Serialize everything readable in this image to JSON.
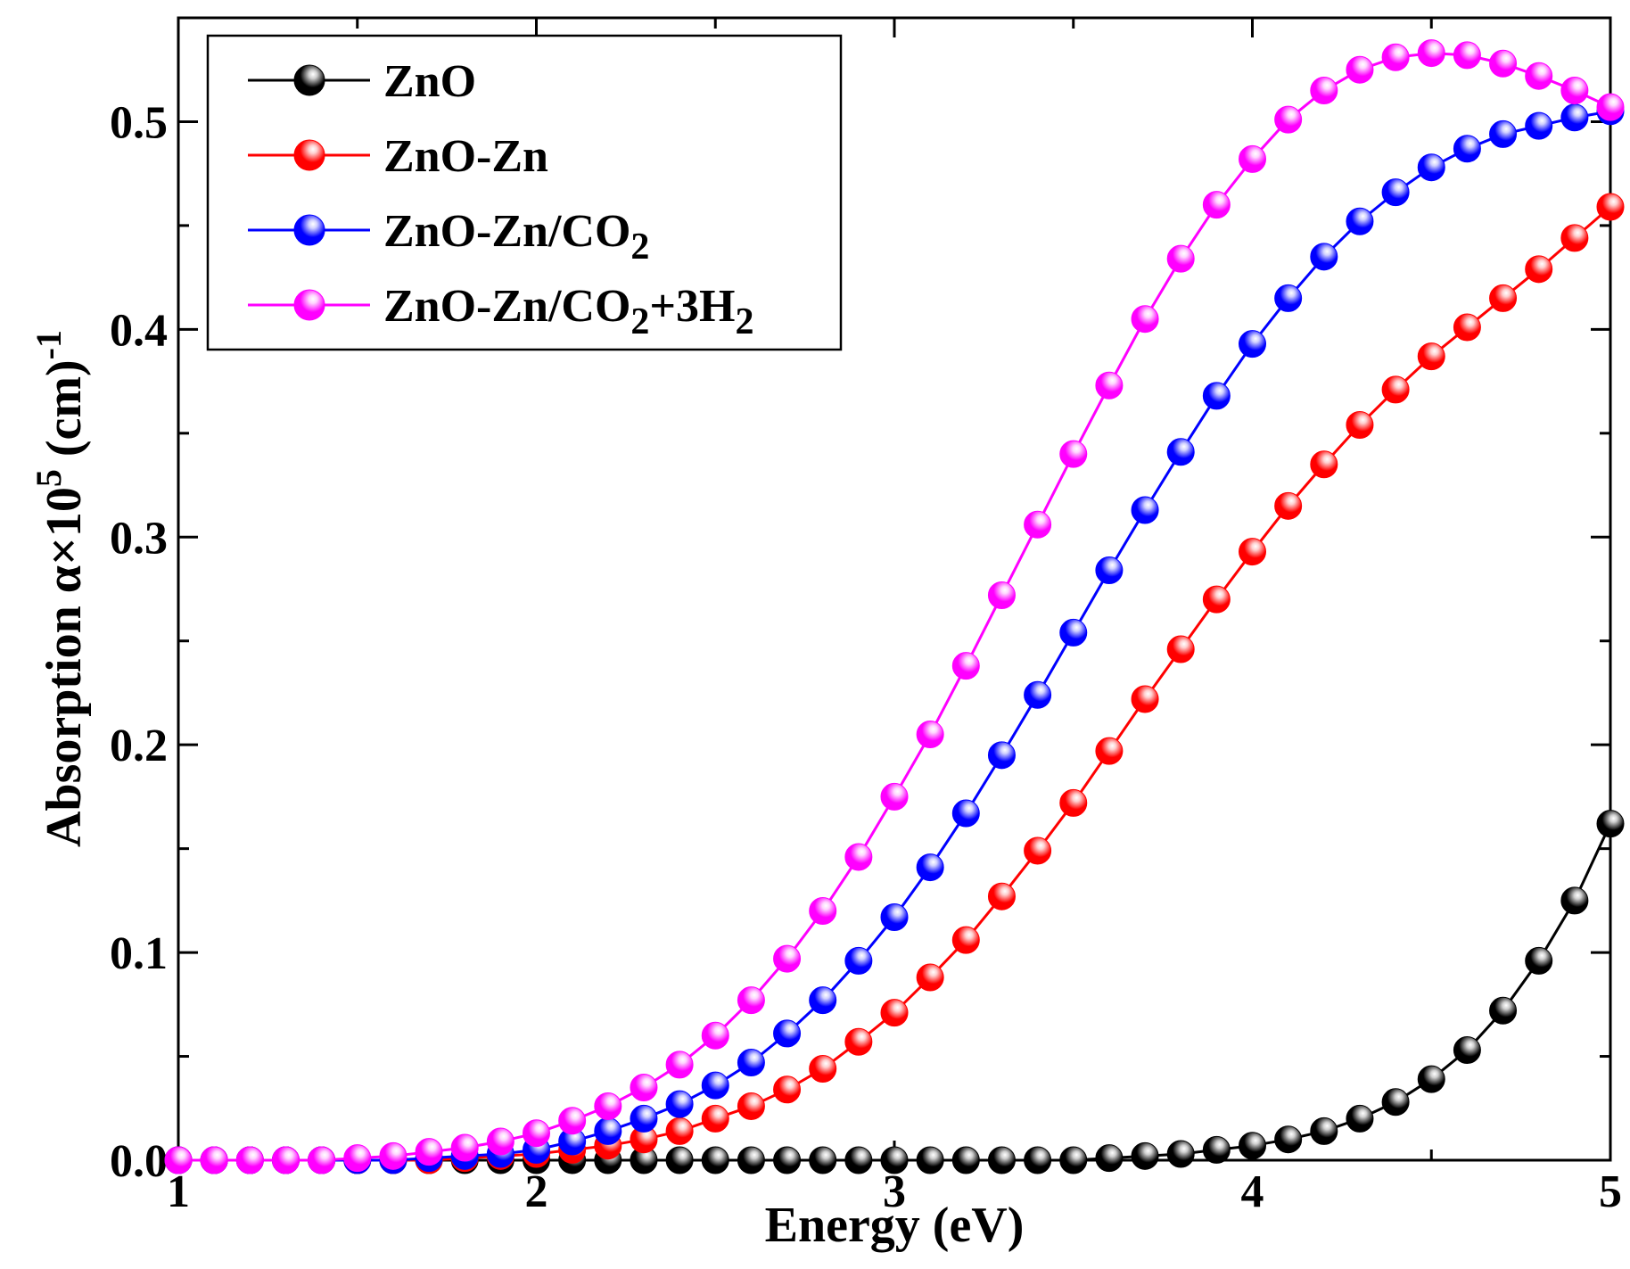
{
  "chart_data": {
    "type": "line",
    "title": "",
    "xlabel": "Energy (eV)",
    "ylabel": {
      "main": "Absorption α×10",
      "exp": "5",
      "unit": " (cm)",
      "unit_exp": "-1"
    },
    "xlim": [
      1,
      5
    ],
    "ylim": [
      0,
      0.55
    ],
    "xticks": [
      1,
      2,
      3,
      4,
      5
    ],
    "yticks": [
      0.0,
      0.1,
      0.2,
      0.3,
      0.4,
      0.5
    ],
    "ytick_labels": [
      "0.0",
      "0.1",
      "0.2",
      "0.3",
      "0.4",
      "0.5"
    ],
    "grid": false,
    "legend_position": "top-left",
    "x": [
      1.0,
      1.1,
      1.2,
      1.3,
      1.4,
      1.5,
      1.6,
      1.7,
      1.8,
      1.9,
      2.0,
      2.1,
      2.2,
      2.3,
      2.4,
      2.5,
      2.6,
      2.7,
      2.8,
      2.9,
      3.0,
      3.1,
      3.2,
      3.3,
      3.4,
      3.5,
      3.6,
      3.7,
      3.8,
      3.9,
      4.0,
      4.1,
      4.2,
      4.3,
      4.4,
      4.5,
      4.6,
      4.7,
      4.8,
      4.9,
      5.0
    ],
    "series": [
      {
        "name": "ZnO",
        "legend": {
          "main": "ZnO",
          "parts": []
        },
        "color": "#000000",
        "marker_highlight": "#cfcfcf",
        "values": [
          0.0,
          0.0,
          0.0,
          0.0,
          0.0,
          0.0,
          0.0,
          0.0,
          0.0,
          0.0,
          0.0,
          0.0,
          0.0,
          0.0,
          0.0,
          0.0,
          0.0,
          0.0,
          0.0,
          0.0,
          0.0,
          0.0,
          0.0,
          0.0,
          0.0,
          0.0,
          0.001,
          0.002,
          0.003,
          0.005,
          0.007,
          0.01,
          0.014,
          0.02,
          0.028,
          0.039,
          0.053,
          0.072,
          0.096,
          0.125,
          0.162
        ]
      },
      {
        "name": "ZnO-Zn",
        "legend": {
          "main": "ZnO-Zn",
          "parts": []
        },
        "color": "#ff0000",
        "marker_highlight": "#ffd0d0",
        "values": [
          0.0,
          0.0,
          0.0,
          0.0,
          0.0,
          0.0,
          0.0,
          0.0,
          0.001,
          0.002,
          0.003,
          0.005,
          0.007,
          0.01,
          0.014,
          0.02,
          0.026,
          0.034,
          0.044,
          0.057,
          0.071,
          0.088,
          0.106,
          0.127,
          0.149,
          0.172,
          0.197,
          0.222,
          0.246,
          0.27,
          0.293,
          0.315,
          0.335,
          0.354,
          0.371,
          0.387,
          0.401,
          0.415,
          0.429,
          0.444,
          0.459
        ]
      },
      {
        "name": "ZnO-Zn/CO2",
        "legend": {
          "main": "ZnO-Zn/CO",
          "parts": [
            {
              "sub": "2",
              "text": ""
            }
          ]
        },
        "color": "#0000ff",
        "marker_highlight": "#d0d0ff",
        "values": [
          0.0,
          0.0,
          0.0,
          0.0,
          0.0,
          0.0,
          0.0,
          0.001,
          0.002,
          0.003,
          0.005,
          0.009,
          0.014,
          0.02,
          0.027,
          0.036,
          0.047,
          0.061,
          0.077,
          0.096,
          0.117,
          0.141,
          0.167,
          0.195,
          0.224,
          0.254,
          0.284,
          0.313,
          0.341,
          0.368,
          0.393,
          0.415,
          0.435,
          0.452,
          0.466,
          0.478,
          0.487,
          0.494,
          0.498,
          0.502,
          0.505
        ]
      },
      {
        "name": "ZnO-Zn/CO2+3H2",
        "legend": {
          "main": "ZnO-Zn/CO",
          "parts": [
            {
              "sub": "2",
              "text": "+3H"
            },
            {
              "sub": "2",
              "text": ""
            }
          ]
        },
        "color": "#ff00ff",
        "marker_highlight": "#ffd6ff",
        "values": [
          0.0,
          0.0,
          0.0,
          0.0,
          0.0,
          0.001,
          0.002,
          0.004,
          0.006,
          0.009,
          0.013,
          0.019,
          0.026,
          0.035,
          0.046,
          0.06,
          0.077,
          0.097,
          0.12,
          0.146,
          0.175,
          0.205,
          0.238,
          0.272,
          0.306,
          0.34,
          0.373,
          0.405,
          0.434,
          0.46,
          0.482,
          0.501,
          0.515,
          0.525,
          0.531,
          0.533,
          0.532,
          0.528,
          0.522,
          0.515,
          0.507
        ]
      }
    ]
  }
}
